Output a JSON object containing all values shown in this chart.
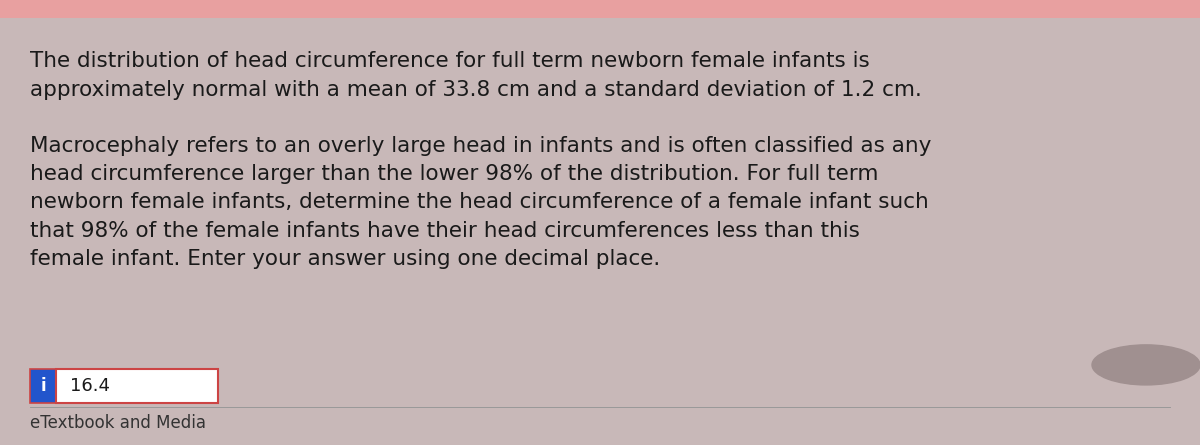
{
  "background_color": "#c8b8b8",
  "card_color": "#d4c4c4",
  "top_bar_color": "#e8a0a0",
  "paragraph1": "The distribution of head circumference for full term newborn female infants is\napproximately normal with a mean of 33.8 cm and a standard deviation of 1.2 cm.",
  "paragraph2": "Macrocephaly refers to an overly large head in infants and is often classified as any\nhead circumference larger than the lower 98% of the distribution. For full term\nnewborn female infants, determine the head circumference of a female infant such\nthat 98% of the female infants have their head circumferences less than this\nfemale infant. Enter your answer using one decimal place.",
  "answer_label": "i",
  "answer_value": "16.4",
  "footer_text": "eTextbook and Media",
  "text_color": "#1a1a1a",
  "answer_box_border": "#cc4444",
  "answer_box_bg": "#ffffff",
  "answer_label_bg": "#2255cc",
  "answer_label_color": "#ffffff",
  "footer_color": "#333333",
  "font_size_paragraph": 15.5,
  "font_size_answer": 13,
  "font_size_footer": 12
}
